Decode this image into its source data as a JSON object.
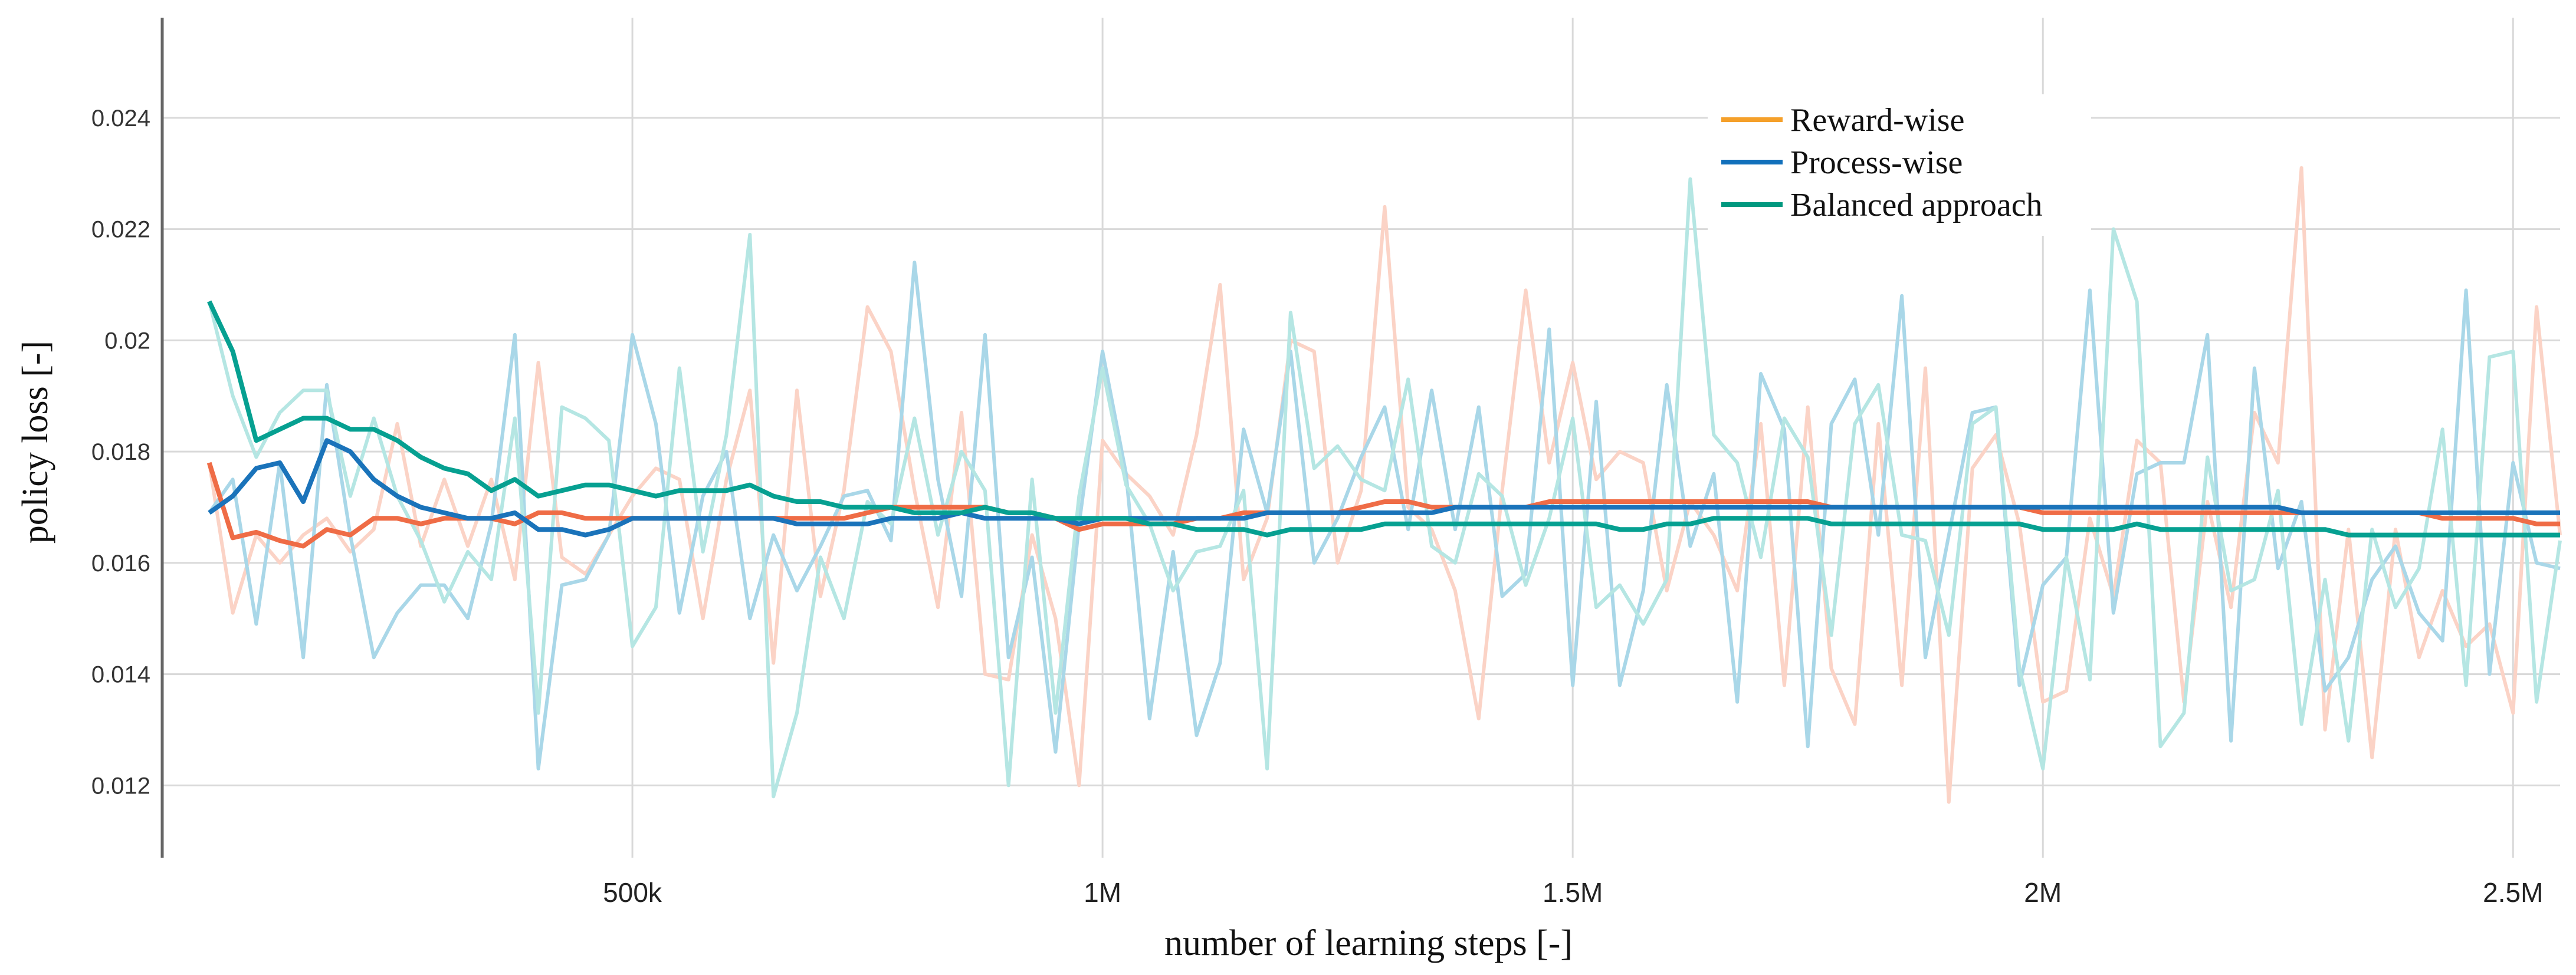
{
  "chart_data": {
    "type": "line",
    "title": "",
    "xlabel": "number of learning steps [-]",
    "ylabel": "policy loss [-]",
    "xlim": [
      0,
      2550000
    ],
    "ylim": [
      0.0107,
      0.0258
    ],
    "x_ticks": [
      {
        "value": 500000,
        "label": "500k"
      },
      {
        "value": 1000000,
        "label": "1M"
      },
      {
        "value": 1500000,
        "label": "1.5M"
      },
      {
        "value": 2000000,
        "label": "2M"
      },
      {
        "value": 2500000,
        "label": "2.5M"
      }
    ],
    "y_ticks": [
      {
        "value": 0.012,
        "label": "0.012"
      },
      {
        "value": 0.014,
        "label": "0.014"
      },
      {
        "value": 0.016,
        "label": "0.016"
      },
      {
        "value": 0.018,
        "label": "0.018"
      },
      {
        "value": 0.02,
        "label": "0.02"
      },
      {
        "value": 0.022,
        "label": "0.022"
      },
      {
        "value": 0.024,
        "label": "0.024"
      }
    ],
    "grid": true,
    "legend_position": "top-right",
    "series": [
      {
        "name": "Reward-wise",
        "legend_color": "#f5a02a",
        "line_color": "#ef6c46",
        "raw_color": "#fbd3c6",
        "x": [
          50000,
          75000,
          100000,
          125000,
          150000,
          175000,
          200000,
          225000,
          250000,
          275000,
          300000,
          325000,
          350000,
          375000,
          400000,
          425000,
          450000,
          475000,
          500000,
          525000,
          550000,
          575000,
          600000,
          625000,
          650000,
          675000,
          700000,
          725000,
          750000,
          775000,
          800000,
          825000,
          850000,
          875000,
          900000,
          925000,
          950000,
          975000,
          1000000,
          1025000,
          1050000,
          1075000,
          1100000,
          1125000,
          1150000,
          1175000,
          1200000,
          1225000,
          1250000,
          1275000,
          1300000,
          1325000,
          1350000,
          1375000,
          1400000,
          1425000,
          1450000,
          1475000,
          1500000,
          1525000,
          1550000,
          1575000,
          1600000,
          1625000,
          1650000,
          1675000,
          1700000,
          1725000,
          1750000,
          1775000,
          1800000,
          1825000,
          1850000,
          1875000,
          1900000,
          1925000,
          1950000,
          1975000,
          2000000,
          2025000,
          2050000,
          2075000,
          2100000,
          2125000,
          2150000,
          2175000,
          2200000,
          2225000,
          2250000,
          2275000,
          2300000,
          2325000,
          2350000,
          2375000,
          2400000,
          2425000,
          2450000,
          2475000,
          2500000,
          2525000,
          2550000
        ],
        "smoothed": [
          0.0178,
          0.01645,
          0.01655,
          0.0164,
          0.0163,
          0.0166,
          0.0165,
          0.0168,
          0.0168,
          0.0167,
          0.0168,
          0.0168,
          0.0168,
          0.0167,
          0.0169,
          0.0169,
          0.0168,
          0.0168,
          0.0168,
          0.0168,
          0.0168,
          0.0168,
          0.0168,
          0.0168,
          0.0168,
          0.0168,
          0.0168,
          0.0168,
          0.0169,
          0.017,
          0.017,
          0.017,
          0.017,
          0.017,
          0.0169,
          0.0169,
          0.0168,
          0.0166,
          0.0167,
          0.0167,
          0.0167,
          0.0167,
          0.0168,
          0.0168,
          0.0169,
          0.0169,
          0.0169,
          0.0169,
          0.0169,
          0.017,
          0.0171,
          0.0171,
          0.017,
          0.017,
          0.017,
          0.017,
          0.017,
          0.0171,
          0.0171,
          0.0171,
          0.0171,
          0.0171,
          0.0171,
          0.0171,
          0.0171,
          0.0171,
          0.0171,
          0.0171,
          0.0171,
          0.017,
          0.017,
          0.017,
          0.017,
          0.017,
          0.017,
          0.017,
          0.017,
          0.017,
          0.0169,
          0.0169,
          0.0169,
          0.0169,
          0.0169,
          0.0169,
          0.0169,
          0.0169,
          0.0169,
          0.0169,
          0.0169,
          0.0169,
          0.0169,
          0.0169,
          0.0169,
          0.0169,
          0.0169,
          0.0168,
          0.0168,
          0.0168,
          0.0168,
          0.0167,
          0.0167
        ],
        "raw": [
          0.0178,
          0.0151,
          0.0165,
          0.016,
          0.0165,
          0.0168,
          0.0162,
          0.0166,
          0.0185,
          0.0163,
          0.0175,
          0.0163,
          0.0175,
          0.0157,
          0.0196,
          0.0161,
          0.0158,
          0.0165,
          0.0172,
          0.0177,
          0.0175,
          0.015,
          0.0175,
          0.0191,
          0.0142,
          0.0191,
          0.0154,
          0.0173,
          0.0206,
          0.0198,
          0.0173,
          0.0152,
          0.0187,
          0.014,
          0.0139,
          0.0165,
          0.015,
          0.012,
          0.0182,
          0.0176,
          0.0172,
          0.0165,
          0.0183,
          0.021,
          0.0157,
          0.0168,
          0.02,
          0.0198,
          0.016,
          0.0173,
          0.0224,
          0.017,
          0.0166,
          0.0155,
          0.0132,
          0.0173,
          0.0209,
          0.0178,
          0.0196,
          0.0175,
          0.018,
          0.0178,
          0.0155,
          0.0171,
          0.0165,
          0.0155,
          0.0185,
          0.0138,
          0.0188,
          0.0141,
          0.0131,
          0.0185,
          0.0138,
          0.0195,
          0.0117,
          0.0177,
          0.0183,
          0.0167,
          0.0135,
          0.0137,
          0.0168,
          0.0154,
          0.0182,
          0.0178,
          0.0135,
          0.0171,
          0.0152,
          0.0187,
          0.0178,
          0.0231,
          0.013,
          0.0166,
          0.0125,
          0.0166,
          0.0143,
          0.0155,
          0.0145,
          0.0149,
          0.0133,
          0.0206,
          0.0165
        ]
      },
      {
        "name": "Process-wise",
        "legend_color": "#1270bb",
        "line_color": "#1a73ba",
        "raw_color": "#a9d7e8",
        "x": [
          50000,
          75000,
          100000,
          125000,
          150000,
          175000,
          200000,
          225000,
          250000,
          275000,
          300000,
          325000,
          350000,
          375000,
          400000,
          425000,
          450000,
          475000,
          500000,
          525000,
          550000,
          575000,
          600000,
          625000,
          650000,
          675000,
          700000,
          725000,
          750000,
          775000,
          800000,
          825000,
          850000,
          875000,
          900000,
          925000,
          950000,
          975000,
          1000000,
          1025000,
          1050000,
          1075000,
          1100000,
          1125000,
          1150000,
          1175000,
          1200000,
          1225000,
          1250000,
          1275000,
          1300000,
          1325000,
          1350000,
          1375000,
          1400000,
          1425000,
          1450000,
          1475000,
          1500000,
          1525000,
          1550000,
          1575000,
          1600000,
          1625000,
          1650000,
          1675000,
          1700000,
          1725000,
          1750000,
          1775000,
          1800000,
          1825000,
          1850000,
          1875000,
          1900000,
          1925000,
          1950000,
          1975000,
          2000000,
          2025000,
          2050000,
          2075000,
          2100000,
          2125000,
          2150000,
          2175000,
          2200000,
          2225000,
          2250000,
          2275000,
          2300000,
          2325000,
          2350000,
          2375000,
          2400000,
          2425000,
          2450000,
          2475000,
          2500000,
          2525000,
          2550000
        ],
        "smoothed": [
          0.0169,
          0.0172,
          0.0177,
          0.0178,
          0.0171,
          0.0182,
          0.018,
          0.0175,
          0.0172,
          0.017,
          0.0169,
          0.0168,
          0.0168,
          0.0169,
          0.0166,
          0.0166,
          0.0165,
          0.0166,
          0.0168,
          0.0168,
          0.0168,
          0.0168,
          0.0168,
          0.0168,
          0.0168,
          0.0167,
          0.0167,
          0.0167,
          0.0167,
          0.0168,
          0.0168,
          0.0168,
          0.0169,
          0.0168,
          0.0168,
          0.0168,
          0.0168,
          0.0167,
          0.0168,
          0.0168,
          0.0168,
          0.0168,
          0.0168,
          0.0168,
          0.0168,
          0.0169,
          0.0169,
          0.0169,
          0.0169,
          0.0169,
          0.0169,
          0.0169,
          0.0169,
          0.017,
          0.017,
          0.017,
          0.017,
          0.017,
          0.017,
          0.017,
          0.017,
          0.017,
          0.017,
          0.017,
          0.017,
          0.017,
          0.017,
          0.017,
          0.017,
          0.017,
          0.017,
          0.017,
          0.017,
          0.017,
          0.017,
          0.017,
          0.017,
          0.017,
          0.017,
          0.017,
          0.017,
          0.017,
          0.017,
          0.017,
          0.017,
          0.017,
          0.017,
          0.017,
          0.017,
          0.0169,
          0.0169,
          0.0169,
          0.0169,
          0.0169,
          0.0169,
          0.0169,
          0.0169,
          0.0169,
          0.0169,
          0.0169,
          0.0169
        ],
        "raw": [
          0.0169,
          0.0175,
          0.0149,
          0.0178,
          0.0143,
          0.0192,
          0.0165,
          0.0143,
          0.0151,
          0.0156,
          0.0156,
          0.015,
          0.0167,
          0.0201,
          0.0123,
          0.0156,
          0.0157,
          0.0165,
          0.0201,
          0.0185,
          0.0151,
          0.0172,
          0.018,
          0.015,
          0.0165,
          0.0155,
          0.0163,
          0.0172,
          0.0173,
          0.0164,
          0.0214,
          0.0175,
          0.0154,
          0.0201,
          0.0143,
          0.0161,
          0.0126,
          0.0167,
          0.0198,
          0.0176,
          0.0132,
          0.0162,
          0.0129,
          0.0142,
          0.0184,
          0.0169,
          0.0198,
          0.016,
          0.0168,
          0.0179,
          0.0188,
          0.0166,
          0.0191,
          0.0166,
          0.0188,
          0.0154,
          0.0158,
          0.0202,
          0.0138,
          0.0189,
          0.0138,
          0.0155,
          0.0192,
          0.0163,
          0.0176,
          0.0135,
          0.0194,
          0.0184,
          0.0127,
          0.0185,
          0.0193,
          0.0165,
          0.0208,
          0.0143,
          0.0165,
          0.0187,
          0.0188,
          0.0138,
          0.0156,
          0.0161,
          0.0209,
          0.0151,
          0.0176,
          0.0178,
          0.0178,
          0.0201,
          0.0128,
          0.0195,
          0.0159,
          0.0171,
          0.0137,
          0.0143,
          0.0157,
          0.0163,
          0.0151,
          0.0146,
          0.0209,
          0.014,
          0.0178,
          0.016,
          0.0159
        ]
      },
      {
        "name": "Balanced approach",
        "legend_color": "#00987f",
        "line_color": "#06a091",
        "raw_color": "#b5e6e3",
        "x": [
          50000,
          75000,
          100000,
          125000,
          150000,
          175000,
          200000,
          225000,
          250000,
          275000,
          300000,
          325000,
          350000,
          375000,
          400000,
          425000,
          450000,
          475000,
          500000,
          525000,
          550000,
          575000,
          600000,
          625000,
          650000,
          675000,
          700000,
          725000,
          750000,
          775000,
          800000,
          825000,
          850000,
          875000,
          900000,
          925000,
          950000,
          975000,
          1000000,
          1025000,
          1050000,
          1075000,
          1100000,
          1125000,
          1150000,
          1175000,
          1200000,
          1225000,
          1250000,
          1275000,
          1300000,
          1325000,
          1350000,
          1375000,
          1400000,
          1425000,
          1450000,
          1475000,
          1500000,
          1525000,
          1550000,
          1575000,
          1600000,
          1625000,
          1650000,
          1675000,
          1700000,
          1725000,
          1750000,
          1775000,
          1800000,
          1825000,
          1850000,
          1875000,
          1900000,
          1925000,
          1950000,
          1975000,
          2000000,
          2025000,
          2050000,
          2075000,
          2100000,
          2125000,
          2150000,
          2175000,
          2200000,
          2225000,
          2250000,
          2275000,
          2300000,
          2325000,
          2350000,
          2375000,
          2400000,
          2425000,
          2450000,
          2475000,
          2500000,
          2525000,
          2550000
        ],
        "smoothed": [
          0.0207,
          0.0198,
          0.0182,
          0.0184,
          0.0186,
          0.0186,
          0.0184,
          0.0184,
          0.0182,
          0.0179,
          0.0177,
          0.0176,
          0.0173,
          0.0175,
          0.0172,
          0.0173,
          0.0174,
          0.0174,
          0.0173,
          0.0172,
          0.0173,
          0.0173,
          0.0173,
          0.0174,
          0.0172,
          0.0171,
          0.0171,
          0.017,
          0.017,
          0.017,
          0.0169,
          0.0169,
          0.0169,
          0.017,
          0.0169,
          0.0169,
          0.0168,
          0.0168,
          0.0168,
          0.0168,
          0.0167,
          0.0167,
          0.0166,
          0.0166,
          0.0166,
          0.0165,
          0.0166,
          0.0166,
          0.0166,
          0.0166,
          0.0167,
          0.0167,
          0.0167,
          0.0167,
          0.0167,
          0.0167,
          0.0167,
          0.0167,
          0.0167,
          0.0167,
          0.0166,
          0.0166,
          0.0167,
          0.0167,
          0.0168,
          0.0168,
          0.0168,
          0.0168,
          0.0168,
          0.0167,
          0.0167,
          0.0167,
          0.0167,
          0.0167,
          0.0167,
          0.0167,
          0.0167,
          0.0167,
          0.0166,
          0.0166,
          0.0166,
          0.0166,
          0.0167,
          0.0166,
          0.0166,
          0.0166,
          0.0166,
          0.0166,
          0.0166,
          0.0166,
          0.0166,
          0.0165,
          0.0165,
          0.0165,
          0.0165,
          0.0165,
          0.0165,
          0.0165,
          0.0165,
          0.0165,
          0.0165
        ],
        "raw": [
          0.0207,
          0.019,
          0.0179,
          0.0187,
          0.0191,
          0.0191,
          0.0172,
          0.0186,
          0.0172,
          0.0164,
          0.0153,
          0.0162,
          0.0157,
          0.0186,
          0.0133,
          0.0188,
          0.0186,
          0.0182,
          0.0145,
          0.0152,
          0.0195,
          0.0162,
          0.0183,
          0.0219,
          0.0118,
          0.0133,
          0.0161,
          0.015,
          0.0171,
          0.0167,
          0.0186,
          0.0165,
          0.018,
          0.0173,
          0.012,
          0.0175,
          0.0133,
          0.0172,
          0.0195,
          0.0174,
          0.0167,
          0.0155,
          0.0162,
          0.0163,
          0.0173,
          0.0123,
          0.0205,
          0.0177,
          0.0181,
          0.0175,
          0.0173,
          0.0193,
          0.0163,
          0.016,
          0.0176,
          0.0172,
          0.0156,
          0.0168,
          0.0186,
          0.0152,
          0.0156,
          0.0149,
          0.0157,
          0.0229,
          0.0183,
          0.0178,
          0.0161,
          0.0186,
          0.0179,
          0.0147,
          0.0185,
          0.0192,
          0.0165,
          0.0164,
          0.0147,
          0.0185,
          0.0188,
          0.0141,
          0.0123,
          0.0161,
          0.0139,
          0.022,
          0.0207,
          0.0127,
          0.0133,
          0.0179,
          0.0155,
          0.0157,
          0.0173,
          0.0131,
          0.0157,
          0.0128,
          0.0166,
          0.0152,
          0.0159,
          0.0184,
          0.0138,
          0.0197,
          0.0198,
          0.0135,
          0.0164
        ]
      }
    ]
  }
}
